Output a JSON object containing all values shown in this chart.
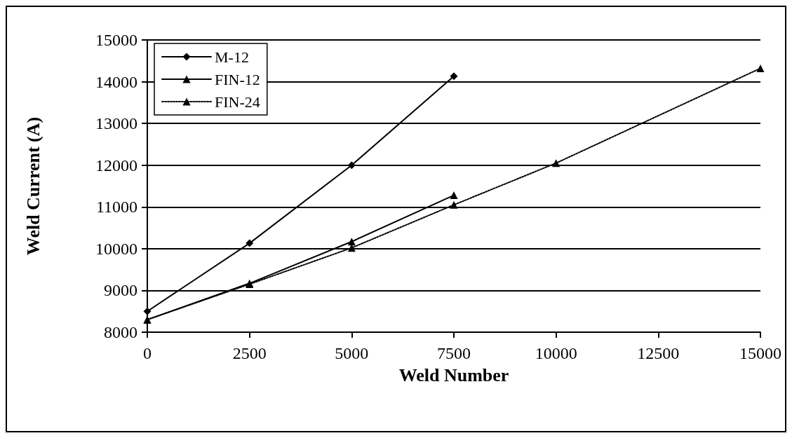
{
  "chart_data": {
    "type": "line",
    "xlabel": "Weld Number",
    "ylabel": "Weld Current (A)",
    "xlim": [
      0,
      15000
    ],
    "xticks": [
      0,
      2500,
      5000,
      7500,
      10000,
      12500,
      15000
    ],
    "ylim": [
      8000,
      15000
    ],
    "yticks": [
      8000,
      9000,
      10000,
      11000,
      12000,
      13000,
      14000,
      15000
    ],
    "grid": "y",
    "legend": "top left",
    "series": [
      {
        "name": "M-12",
        "color": "#000000",
        "marker": "diamond",
        "line_style": "solid",
        "x": [
          0,
          2500,
          5000,
          7500
        ],
        "values": [
          8500,
          10130,
          12000,
          14130
        ]
      },
      {
        "name": "FIN-12",
        "color": "#000000",
        "marker": "triangle",
        "line_style": "solid",
        "x": [
          0,
          2500,
          5000,
          7500
        ],
        "values": [
          8300,
          9170,
          10170,
          11280
        ]
      },
      {
        "name": "FIN-24",
        "color": "#000000",
        "marker": "triangle",
        "line_style": "dotted",
        "x": [
          0,
          2500,
          5000,
          7500,
          10000,
          12500,
          15000
        ],
        "values": [
          8300,
          9150,
          10020,
          11050,
          12050,
          null,
          14320
        ]
      }
    ]
  }
}
